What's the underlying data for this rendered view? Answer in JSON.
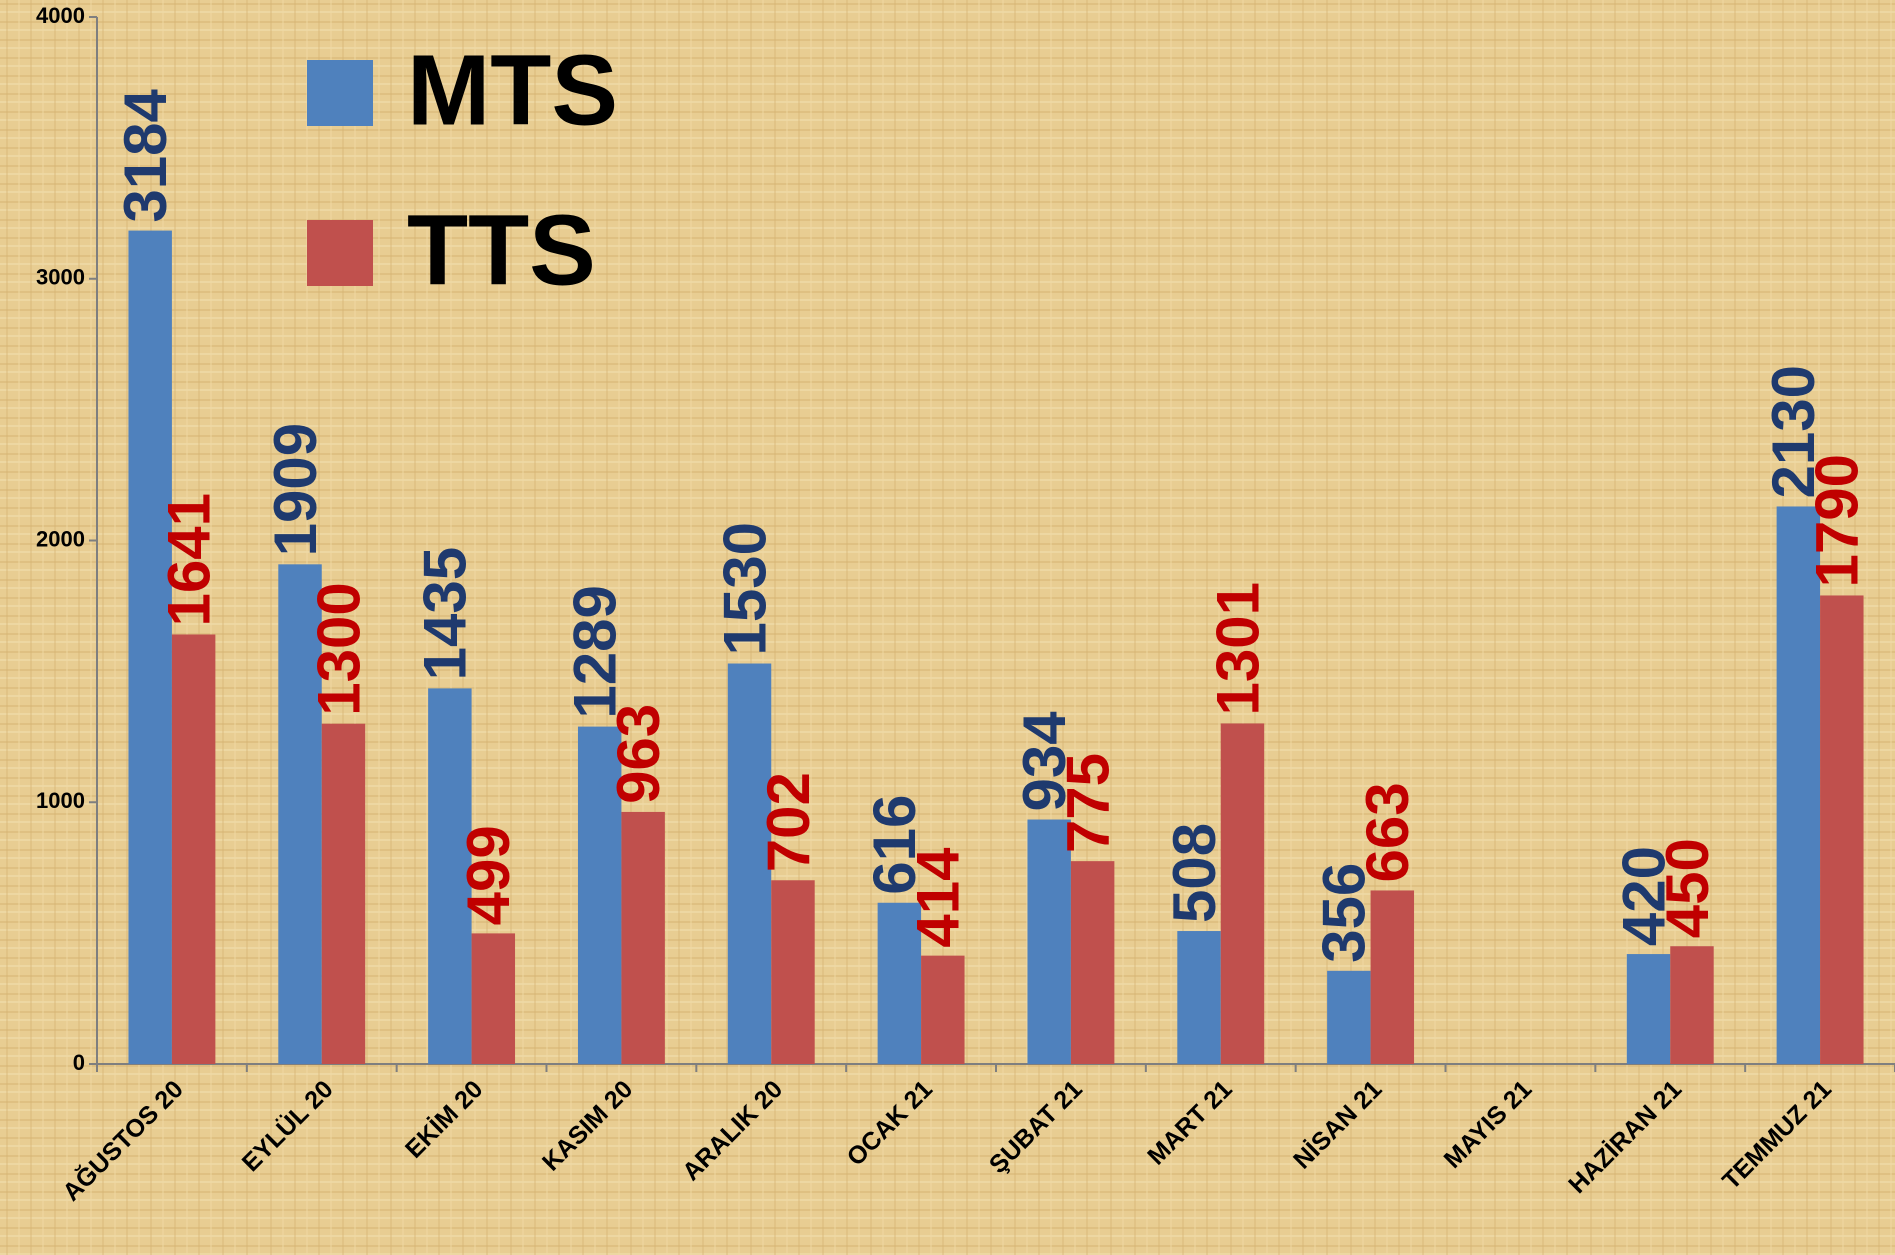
{
  "chart_data": {
    "type": "bar",
    "categories": [
      "AĞUSTOS 20",
      "EYLÜL 20",
      "EKİM 20",
      "KASIM 20",
      "ARALIK 20",
      "OCAK 21",
      "ŞUBAT 21",
      "MART 21",
      "NİSAN 21",
      "MAYIS 21",
      "HAZİRAN 21",
      "TEMMUZ 21"
    ],
    "series": [
      {
        "name": "MTS",
        "color": "#4f81bd",
        "label_color": "#1f3a6e",
        "values": [
          3184,
          1909,
          1435,
          1289,
          1530,
          616,
          934,
          508,
          356,
          null,
          420,
          2130
        ]
      },
      {
        "name": "TTS",
        "color": "#c0504d",
        "label_color": "#c00000",
        "values": [
          1641,
          1300,
          499,
          963,
          702,
          414,
          775,
          1301,
          663,
          null,
          450,
          1790
        ]
      }
    ],
    "ylim": [
      0,
      4000
    ],
    "yticks": [
      0,
      1000,
      2000,
      3000,
      4000
    ],
    "grid": false,
    "legend": "top-left"
  }
}
